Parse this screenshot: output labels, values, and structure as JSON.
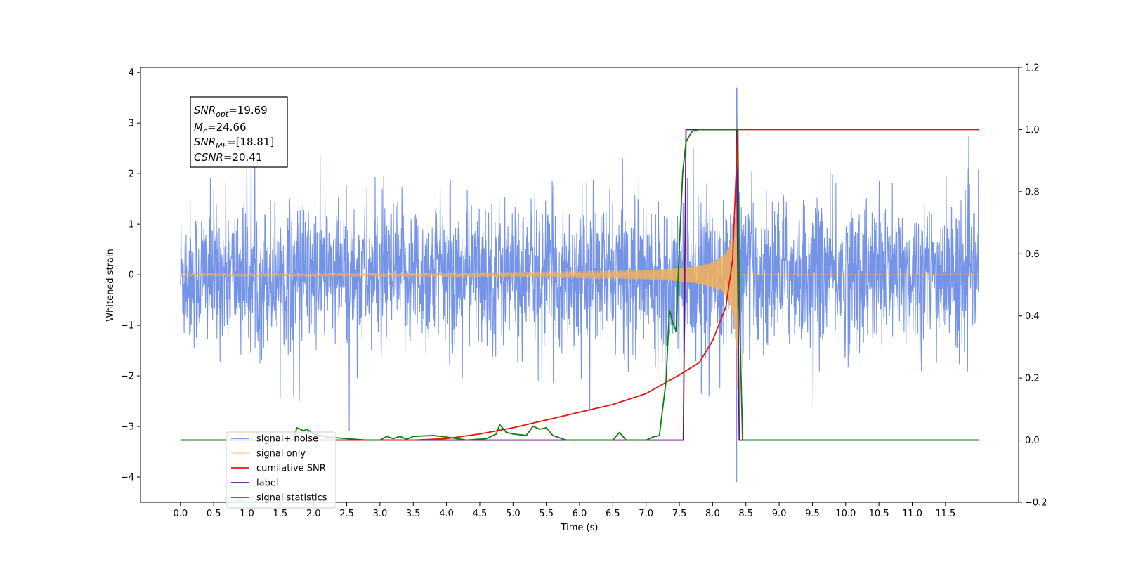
{
  "chart_data": {
    "type": "line",
    "xlabel": "Time (s)",
    "ylabel": "Whitened strain",
    "xlim": [
      -0.6,
      12.6
    ],
    "ylim": [
      -4.5,
      4.1
    ],
    "y2lim": [
      -0.2,
      1.2
    ],
    "xticks": [
      "0.0",
      "0.5",
      "1.0",
      "1.5",
      "2.0",
      "2.5",
      "3.0",
      "3.5",
      "4.0",
      "4.5",
      "5.0",
      "5.5",
      "6.0",
      "6.5",
      "7.0",
      "7.5",
      "8.0",
      "8.5",
      "9.0",
      "9.5",
      "10.0",
      "10.5",
      "11.0",
      "11.5"
    ],
    "yticks": [
      "4",
      "3",
      "2",
      "1",
      "0",
      "−1",
      "−2",
      "−3",
      "−4"
    ],
    "y2ticks": [
      "1.2",
      "1.0",
      "0.8",
      "0.6",
      "0.4",
      "0.2",
      "0.0",
      "−0.2"
    ],
    "grid": false,
    "legend_position": "bottom-left",
    "annotation": {
      "snr_opt": "=19.69",
      "mc": "=24.66",
      "snr_mf": "=[18.81]",
      "csnr": "=20.41"
    },
    "series": [
      {
        "name": "signal+ noise",
        "color": "#6f8ee6",
        "axis": "left",
        "description_of_values": "white noise roughly within -2 to 2.5 with spikes to about 3.7 near t=8.36",
        "x_range": [
          0.0,
          12.0
        ],
        "noise_amplitude": 1.0,
        "peak": {
          "x": 8.36,
          "y_max": 3.7,
          "y_min": -4.1
        }
      },
      {
        "name": "signal only",
        "color": "#f5b05a",
        "axis": "left",
        "x_range": [
          0.0,
          12.0
        ],
        "chirp_merger_time": 8.38,
        "peak_amplitude": 3.5
      },
      {
        "name": "cumilative SNR",
        "color": "#e8120c",
        "axis": "right",
        "x": [
          0.0,
          3.5,
          4.0,
          4.5,
          5.0,
          5.5,
          6.0,
          6.5,
          7.0,
          7.5,
          7.8,
          8.0,
          8.2,
          8.3,
          8.38,
          8.5,
          9.0,
          10.0,
          11.0,
          12.0
        ],
        "y": [
          0.0,
          0.0,
          0.005,
          0.02,
          0.04,
          0.065,
          0.09,
          0.115,
          0.15,
          0.21,
          0.25,
          0.32,
          0.43,
          0.58,
          1.0,
          1.0,
          1.0,
          1.0,
          1.0,
          1.0
        ]
      },
      {
        "name": "label",
        "color": "#6e0f85",
        "axis": "right",
        "x": [
          0.0,
          7.56,
          7.6,
          8.36,
          8.4,
          12.0
        ],
        "y": [
          0.0,
          0.0,
          1.0,
          1.0,
          0.0,
          0.0
        ]
      },
      {
        "name": "signal statistics",
        "color": "#0e7d0e",
        "axis": "right",
        "x": [
          0.0,
          1.7,
          1.75,
          1.85,
          1.9,
          2.0,
          2.2,
          2.5,
          2.8,
          3.0,
          3.1,
          3.2,
          3.3,
          3.4,
          3.5,
          3.8,
          4.0,
          4.3,
          4.6,
          4.75,
          4.8,
          4.9,
          5.0,
          5.2,
          5.3,
          5.4,
          5.5,
          5.6,
          5.8,
          6.0,
          6.5,
          6.6,
          6.7,
          6.8,
          7.0,
          7.1,
          7.2,
          7.3,
          7.35,
          7.4,
          7.45,
          7.5,
          7.55,
          7.6,
          7.65,
          7.7,
          7.8,
          8.0,
          8.35,
          8.38,
          8.4,
          8.45,
          12.0
        ],
        "y": [
          0.0,
          0.0,
          0.04,
          0.03,
          0.035,
          0.02,
          0.01,
          0.005,
          0.0,
          0.0,
          0.012,
          0.005,
          0.012,
          0.003,
          0.012,
          0.015,
          0.01,
          0.0,
          0.005,
          0.02,
          0.05,
          0.025,
          0.02,
          0.015,
          0.045,
          0.035,
          0.04,
          0.015,
          0.0,
          0.0,
          0.0,
          0.025,
          0.0,
          0.0,
          0.0,
          0.01,
          0.015,
          0.19,
          0.42,
          0.38,
          0.35,
          0.62,
          0.86,
          0.96,
          0.98,
          0.995,
          1.0,
          1.0,
          1.0,
          1.0,
          0.45,
          0.0,
          0.0
        ]
      }
    ],
    "legend": [
      "signal+ noise",
      "signal only",
      "cumilative SNR",
      "label",
      "signal statistics"
    ]
  }
}
